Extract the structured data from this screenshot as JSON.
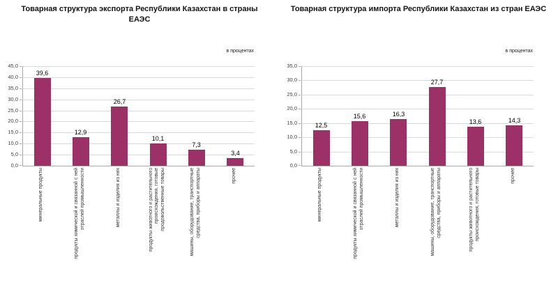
{
  "colors": {
    "bar": "#9B3167",
    "gridline": "#D9D9D9",
    "axis": "#A6A6A6"
  },
  "chart_data": [
    {
      "type": "bar",
      "title": "Товарная структура экспорта Республики Казахстан в страны ЕАЭС",
      "unit": "в процентах",
      "categories": [
        "минеральные продукты",
        "продукты химической и связанной с ней отраслей промышленности",
        "металлы и изделия из них",
        "продукты животного и растительного происхождения, готовые продовольственные товары",
        "машины, оборудование, транспортные средства, приборы и аппараты",
        "прочее"
      ],
      "values": [
        39.6,
        12.9,
        26.7,
        10.1,
        7.3,
        3.4
      ],
      "value_labels": [
        "39,6",
        "12,9",
        "26,7",
        "10,1",
        "7,3",
        "3,4"
      ],
      "ylim": [
        0,
        45
      ],
      "ytick_step": 5,
      "grid": true,
      "legend": false,
      "bar_color": "#9B3167"
    },
    {
      "type": "bar",
      "title": "Товарная структура импорта Республики Казахстан из стран ЕАЭС",
      "unit": "в процентах",
      "categories": [
        "минеральные продукты",
        "продукты химической и связанной с ней отраслей промышленности",
        "металлы и изделия из них",
        "машины, оборудование, транспортные средства, приборы и аппараты",
        "продукты животного и растительного происхождения, готовые товары",
        "прочее"
      ],
      "values": [
        12.5,
        15.6,
        16.3,
        27.7,
        13.6,
        14.3
      ],
      "value_labels": [
        "12,5",
        "15,6",
        "16,3",
        "27,7",
        "13,6",
        "14,3"
      ],
      "ylim": [
        0,
        35
      ],
      "ytick_step": 5,
      "grid": true,
      "legend": false,
      "bar_color": "#9B3167"
    }
  ]
}
